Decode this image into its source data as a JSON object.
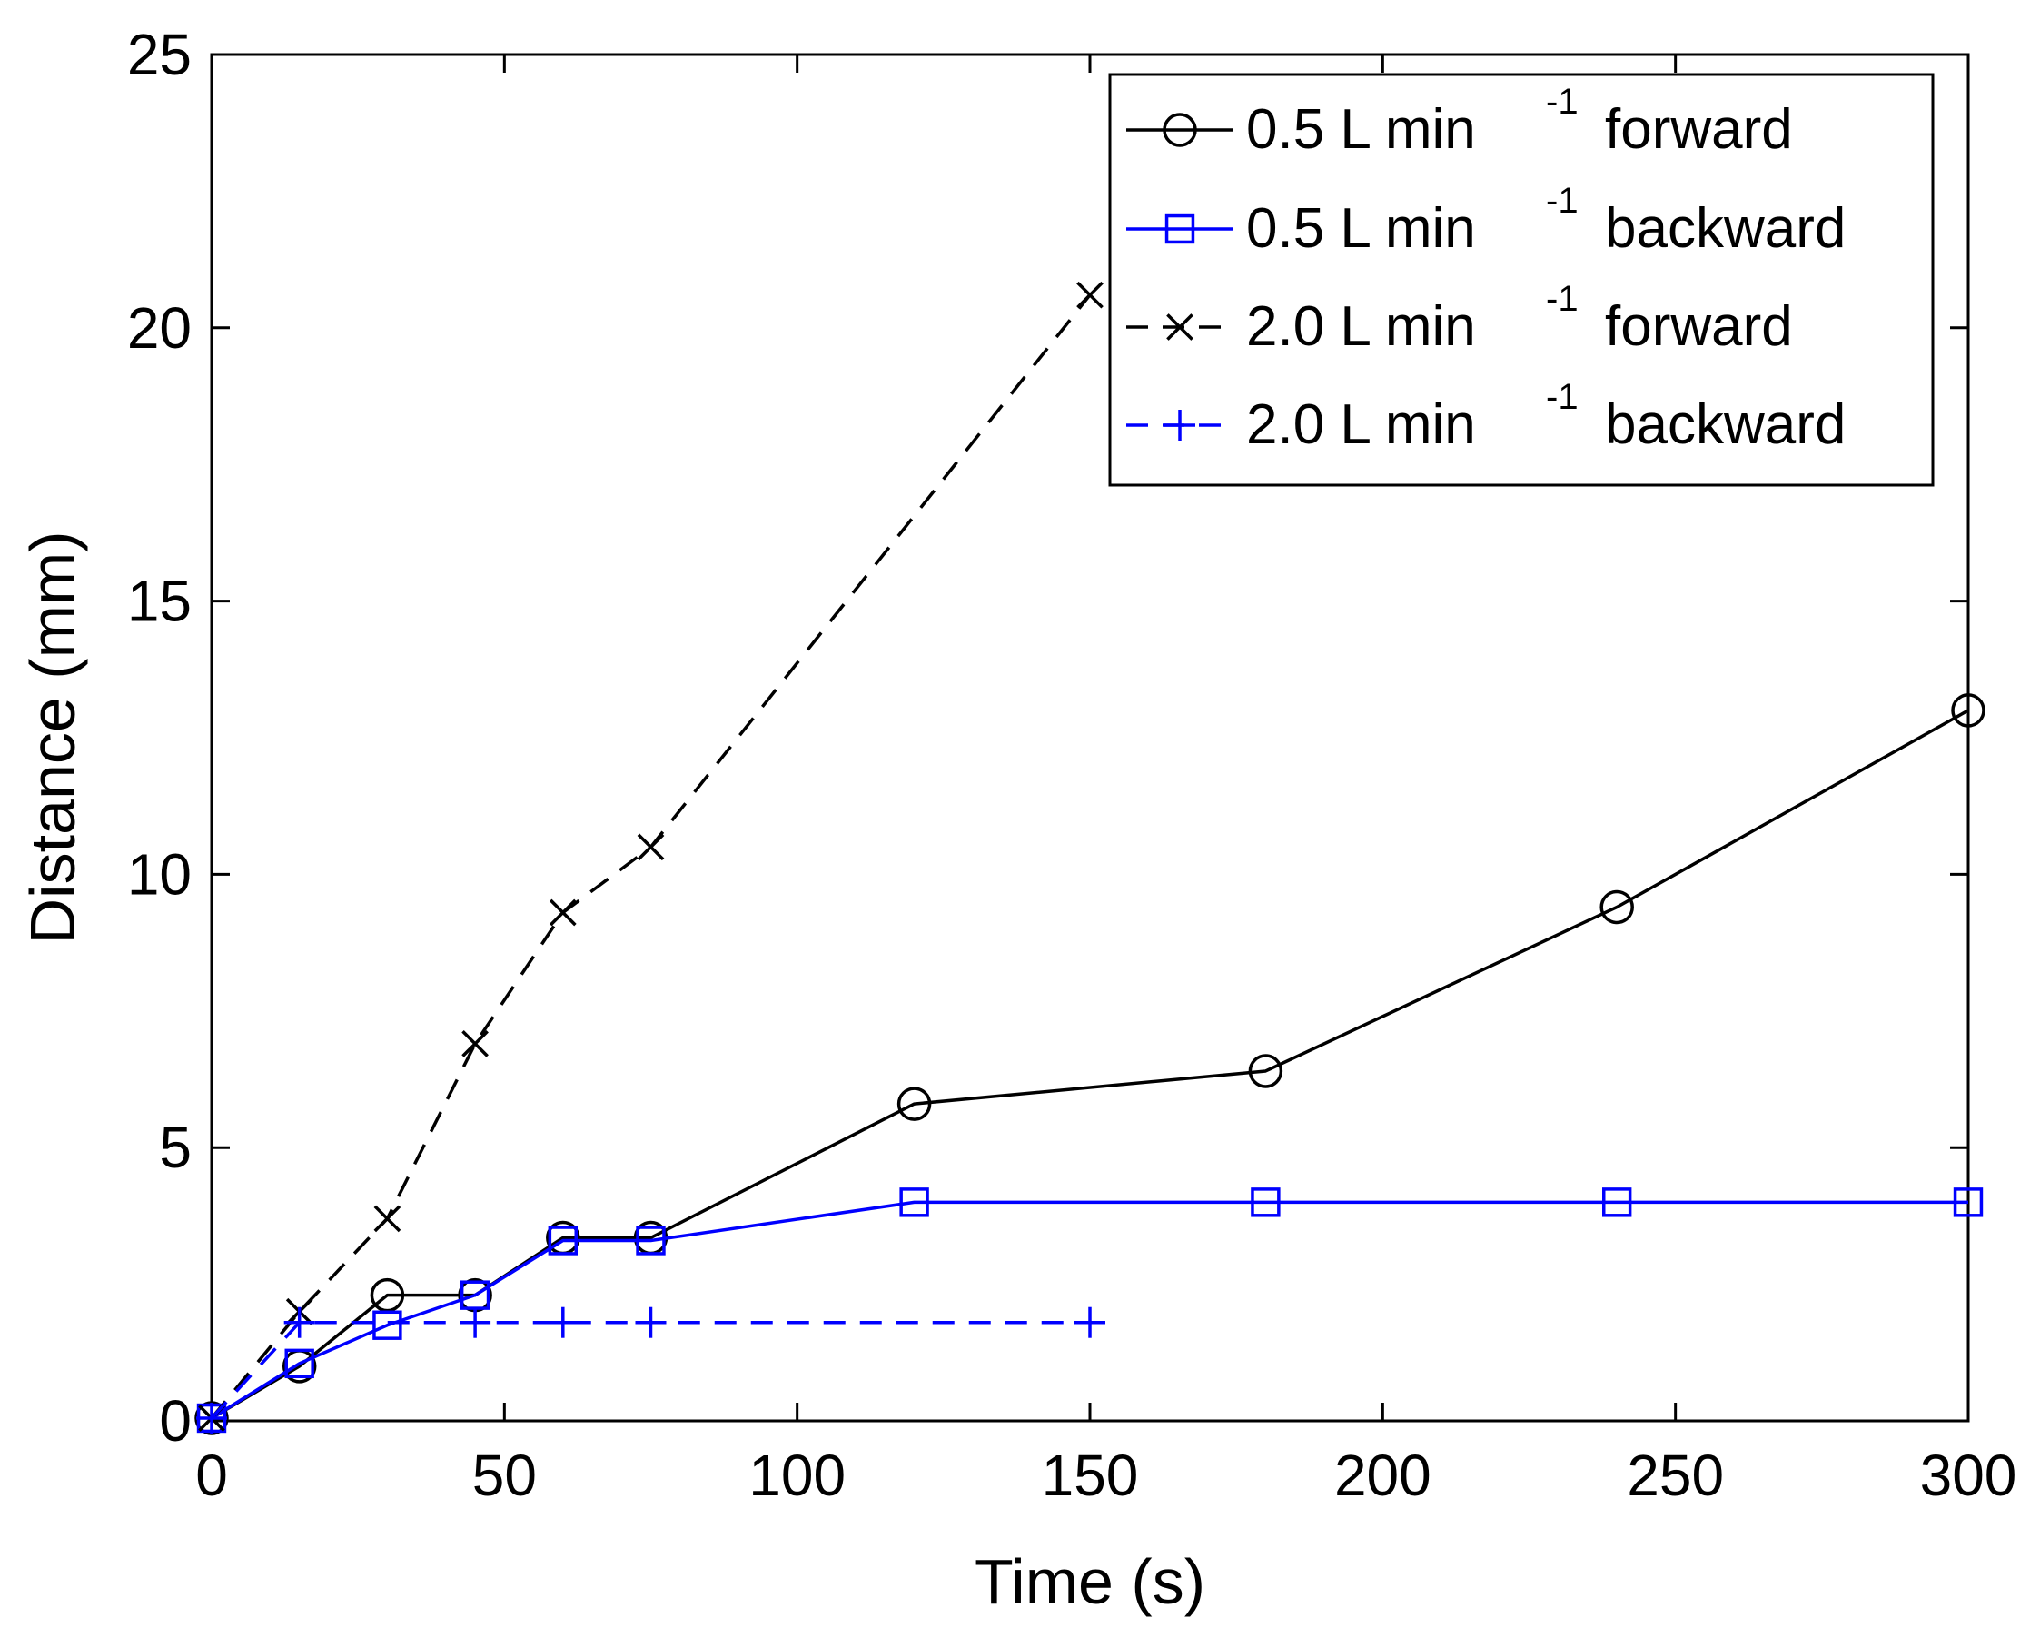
{
  "chart_data": {
    "type": "line",
    "title": "",
    "xlabel": "Time (s)",
    "ylabel": "Distance (mm)",
    "xlim": [
      0,
      300
    ],
    "ylim": [
      0,
      25
    ],
    "xticks": [
      0,
      50,
      100,
      150,
      200,
      250,
      300
    ],
    "yticks": [
      0,
      5,
      10,
      15,
      20,
      25
    ],
    "grid": false,
    "legend_position": "top-right",
    "series": [
      {
        "name": "0.5 L min -1 forward",
        "label_parts": [
          "0.5 L min",
          "-1",
          "forward"
        ],
        "color": "#000000",
        "line_style": "solid",
        "marker": "circle",
        "x": [
          0,
          15,
          30,
          45,
          60,
          75,
          120,
          180,
          240,
          300
        ],
        "y": [
          0.05,
          1.0,
          2.3,
          2.3,
          3.35,
          3.35,
          5.8,
          6.4,
          9.4,
          13.0
        ]
      },
      {
        "name": "0.5 L min -1 backward",
        "label_parts": [
          "0.5 L min",
          "-1",
          "backward"
        ],
        "color": "#0000ff",
        "line_style": "solid",
        "marker": "square",
        "x": [
          0,
          15,
          30,
          45,
          60,
          75,
          120,
          180,
          240,
          300
        ],
        "y": [
          0.05,
          1.05,
          1.75,
          2.3,
          3.3,
          3.3,
          4.0,
          4.0,
          4.0,
          4.0
        ]
      },
      {
        "name": "2.0 L min -1 forward",
        "label_parts": [
          "2.0 L min",
          "-1",
          "forward"
        ],
        "color": "#000000",
        "line_style": "dashed",
        "marker": "x",
        "x": [
          0,
          15,
          30,
          45,
          60,
          75,
          150
        ],
        "y": [
          0.05,
          2.0,
          3.7,
          6.9,
          9.3,
          10.5,
          20.6
        ]
      },
      {
        "name": "2.0 L min -1 backward",
        "label_parts": [
          "2.0 L min",
          "-1",
          "backward"
        ],
        "color": "#0000ff",
        "line_style": "dashed",
        "marker": "plus",
        "x": [
          0,
          15,
          45,
          60,
          75,
          150
        ],
        "y": [
          0.05,
          1.8,
          1.8,
          1.8,
          1.8,
          1.8
        ]
      }
    ]
  }
}
